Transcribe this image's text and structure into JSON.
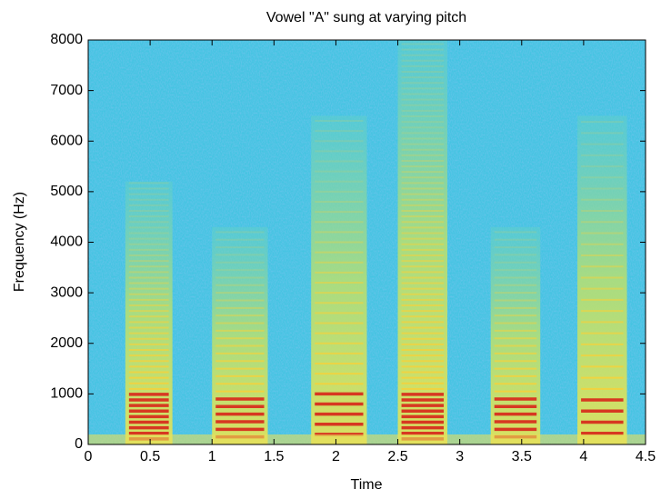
{
  "chart_data": {
    "type": "spectrogram",
    "title": "Vowel \"A\" sung at varying pitch",
    "x_label": "Time",
    "y_label": "Frequency (Hz)",
    "xlim": [
      0,
      4.5
    ],
    "xticks": [
      0,
      0.5,
      1,
      1.5,
      2,
      2.5,
      3,
      3.5,
      4,
      4.5
    ],
    "ylim": [
      0,
      8000
    ],
    "yticks": [
      0,
      1000,
      2000,
      3000,
      4000,
      5000,
      6000,
      7000,
      8000
    ],
    "segments": [
      {
        "start": 0.3,
        "end": 0.68,
        "pitch": 110,
        "top": 5200
      },
      {
        "start": 1.0,
        "end": 1.45,
        "pitch": 150,
        "top": 4300
      },
      {
        "start": 1.8,
        "end": 2.25,
        "pitch": 200,
        "top": 6500
      },
      {
        "start": 2.5,
        "end": 2.9,
        "pitch": 110,
        "top": 8000
      },
      {
        "start": 3.25,
        "end": 3.65,
        "pitch": 150,
        "top": 4300
      },
      {
        "start": 3.95,
        "end": 4.35,
        "pitch": 220,
        "top": 6500
      }
    ]
  }
}
